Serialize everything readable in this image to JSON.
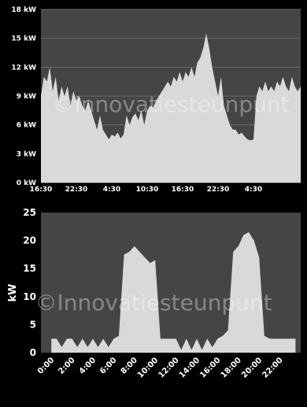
{
  "watermark": "©Innovatiesteunpunt",
  "chart_data": [
    {
      "type": "area",
      "title": "",
      "xlabel": "",
      "ylabel": "",
      "ylim": [
        0,
        18
      ],
      "yticks": [
        "0 kW",
        "3 kW",
        "6 kW",
        "9 kW",
        "12 kW",
        "15 kW",
        "18 kW"
      ],
      "yticks_values": [
        0,
        3,
        6,
        9,
        12,
        15,
        18
      ],
      "xticks": [
        "16:30",
        "22:30",
        "4:30",
        "10:30",
        "16:30",
        "22:30",
        "4:30"
      ],
      "xlim": [
        0,
        44
      ],
      "xticks_values": [
        0,
        6,
        12,
        18,
        24,
        30,
        36
      ],
      "grid": true,
      "background": "#454545",
      "fill_color": "#d9d9d9",
      "series": [
        {
          "x": [
            0,
            0.5,
            1,
            1.5,
            2,
            2.5,
            3,
            3.5,
            4,
            4.5,
            5,
            5.5,
            6,
            6.5,
            7,
            7.5,
            8,
            8.5,
            9,
            9.5,
            10,
            10.5,
            11,
            11.5,
            12,
            12.5,
            13,
            13.5,
            14,
            14.5,
            15,
            15.5,
            16,
            16.5,
            17,
            17.5,
            18,
            18.5,
            19,
            19.5,
            20,
            20.5,
            21,
            21.5,
            22,
            22.5,
            23,
            23.5,
            24,
            24.5,
            25,
            25.5,
            26,
            26.5,
            27,
            27.5,
            28,
            28.5,
            29,
            29.5,
            30,
            30.5,
            31,
            31.5,
            32,
            32.5,
            33,
            33.5,
            34,
            34.5,
            35,
            35.5,
            36,
            36.5,
            37,
            37.5,
            38,
            38.5,
            39,
            39.5,
            40,
            40.5,
            41,
            41.5,
            42,
            42.5,
            43,
            43.5,
            44
          ],
          "values": [
            9,
            11,
            10.5,
            12,
            9.5,
            11,
            8.5,
            10,
            9,
            10,
            8,
            9.5,
            8.5,
            9,
            8,
            7.5,
            8.5,
            7.5,
            6.5,
            5.5,
            7,
            5.5,
            5,
            4.5,
            5,
            4.8,
            5.2,
            4.6,
            5,
            7,
            6,
            6.8,
            7.2,
            6.5,
            7.5,
            6,
            7.5,
            8,
            7.8,
            8.5,
            9,
            9.5,
            10,
            10.5,
            10,
            11,
            10.5,
            11.5,
            10.5,
            11.5,
            11,
            12,
            11,
            12.5,
            13,
            14,
            15.5,
            14,
            12,
            10.5,
            9,
            11,
            8,
            7,
            6,
            5.5,
            5.5,
            5,
            5.2,
            4.8,
            4.5,
            4.4,
            4.5,
            9,
            10,
            9.5,
            10.5,
            9.5,
            10,
            9.5,
            10.5,
            10,
            11,
            10,
            9.5,
            11,
            10,
            9.5,
            10
          ]
        }
      ]
    },
    {
      "type": "area",
      "title": "",
      "xlabel": "",
      "ylabel": "kW",
      "ylim": [
        0,
        25
      ],
      "yticks": [
        "0",
        "5",
        "10",
        "15",
        "20",
        "25"
      ],
      "yticks_values": [
        0,
        5,
        10,
        15,
        20,
        25
      ],
      "xticks": [
        "0:00",
        "2:00",
        "4:00",
        "6:00",
        "8:00",
        "10:00",
        "12:00",
        "14:00",
        "16:00",
        "18:00",
        "20:00",
        "22:00"
      ],
      "xticks_values": [
        0,
        2,
        4,
        6,
        8,
        10,
        12,
        14,
        16,
        18,
        20,
        22
      ],
      "xlim": [
        -1,
        24
      ],
      "grid": false,
      "background": "#454545",
      "fill_color": "#d9d9d9",
      "series": [
        {
          "x": [
            0,
            0.5,
            1,
            1.5,
            2,
            2.5,
            3,
            3.5,
            4,
            4.5,
            5,
            5.5,
            6,
            6.5,
            7,
            7.5,
            8,
            8.5,
            9,
            9.5,
            10,
            10.5,
            11,
            11.5,
            12,
            12.5,
            13,
            13.5,
            14,
            14.5,
            15,
            15.5,
            16,
            16.5,
            17,
            17.5,
            18,
            18.5,
            19,
            19.5,
            20,
            20.5,
            21,
            21.5,
            22,
            22.5,
            23,
            23.5
          ],
          "values": [
            2.5,
            2.5,
            1,
            2.5,
            2.5,
            1,
            2.5,
            1,
            2.5,
            1,
            2.5,
            1,
            2.5,
            3,
            17.5,
            18,
            19,
            18,
            17,
            16,
            16.5,
            2.5,
            2.5,
            2.5,
            2.5,
            0.5,
            2.5,
            0.5,
            2.5,
            0.5,
            2.5,
            1,
            2.5,
            3,
            4,
            18,
            19,
            21,
            21.5,
            20,
            17,
            3,
            2.5,
            2.5,
            2.5,
            2.5,
            2.5,
            2.5
          ]
        }
      ]
    }
  ]
}
